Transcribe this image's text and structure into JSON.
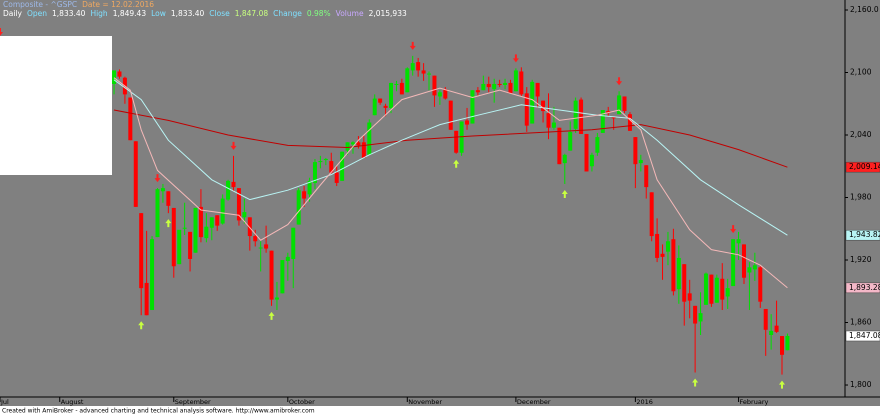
{
  "chart_data": {
    "type": "candlestick",
    "header": {
      "line1": [
        {
          "text": "Composite - ^GSPC",
          "color": "#9db8e8"
        },
        {
          "text": "Date = 12.02.2016",
          "color": "#f0a860"
        }
      ],
      "line2": [
        {
          "text": "Daily",
          "color": "#ffffff"
        },
        {
          "text": "Open",
          "color": "#7fe0ff"
        },
        {
          "text": "1,833.40",
          "color": "#ffffff"
        },
        {
          "text": "High",
          "color": "#7fe0ff"
        },
        {
          "text": "1,849.43",
          "color": "#ffffff"
        },
        {
          "text": "Low",
          "color": "#7fe0ff"
        },
        {
          "text": "1,833.40",
          "color": "#ffffff"
        },
        {
          "text": "Close",
          "color": "#7fe0ff"
        },
        {
          "text": "1,847.08",
          "color": "#c8ff80"
        },
        {
          "text": "Change",
          "color": "#7fe0ff"
        },
        {
          "text": "0.98%",
          "color": "#80ff80"
        },
        {
          "text": "Volume",
          "color": "#c8a8ff"
        },
        {
          "text": "2,015,933",
          "color": "#ffffff"
        }
      ]
    },
    "x": [
      10,
      11,
      12,
      13,
      14,
      15,
      16,
      17,
      18,
      19,
      20,
      21,
      22,
      23,
      24,
      25,
      26,
      27,
      28,
      29,
      30,
      31,
      32,
      33,
      34,
      35,
      36,
      37,
      38,
      39,
      40,
      41,
      42,
      43,
      44,
      45,
      46,
      47,
      48,
      49,
      50,
      51,
      52,
      53,
      54,
      55,
      56,
      57,
      58,
      59,
      60,
      61,
      62,
      63,
      64,
      65,
      66,
      67,
      68,
      69,
      70,
      71,
      72,
      73,
      74,
      75,
      76,
      77,
      78,
      79,
      80,
      81,
      82,
      83,
      84,
      85,
      86,
      87,
      88,
      89,
      90,
      91,
      92,
      93,
      94,
      95,
      96,
      97,
      98,
      99,
      100,
      101,
      102,
      103,
      104,
      105,
      106,
      107,
      108,
      109,
      110,
      111,
      112,
      113,
      114,
      115,
      116,
      117,
      118,
      119,
      120,
      121,
      122,
      123,
      124,
      125,
      126,
      127,
      128,
      129,
      130,
      131,
      132,
      133,
      134
    ],
    "open": [
      2089,
      2101,
      2095,
      2076,
      2034,
      1965,
      1898,
      1872,
      1942,
      1986,
      1986,
      1970,
      1916,
      1950,
      1947,
      1927,
      1971,
      1941,
      1951,
      1963,
      1955,
      1978,
      1995,
      1989,
      1961,
      1961,
      1943,
      1932,
      1935,
      1929,
      1882,
      1888,
      1919,
      1921,
      1954,
      1986,
      1983,
      1994,
      2014,
      2016,
      2015,
      2004,
      1996,
      2025,
      2031,
      2033,
      2033,
      2021,
      2059,
      2075,
      2068,
      2066,
      2088,
      2090,
      2081,
      2102,
      2110,
      2102,
      2098,
      2097,
      2077,
      2084,
      2073,
      2044,
      2023,
      2054,
      2051,
      2083,
      2083,
      2089,
      2084,
      2089,
      2088,
      2090,
      2082,
      2101,
      2080,
      2051,
      2090,
      2073,
      2061,
      2047,
      2047,
      2013,
      2025,
      2046,
      2074,
      2041,
      2010,
      2023,
      2042,
      2063,
      2057,
      2060,
      2077,
      2060,
      2038,
      2013,
      2011,
      1985,
      1945,
      1926,
      1928,
      1940,
      1892,
      1916,
      1888,
      1876,
      1861,
      1877,
      1906,
      1879,
      1902,
      1885,
      1895,
      1936,
      1935,
      1908,
      1911,
      1913,
      1873,
      1848,
      1857,
      1847,
      1833.4
    ],
    "high": [
      2102,
      2103,
      2096,
      2076,
      2034,
      1965,
      1948,
      1943,
      1989,
      1993,
      1986,
      1970,
      1948,
      1975,
      1947,
      1970,
      1988,
      1965,
      1961,
      1963,
      1983,
      1997,
      2020,
      1989,
      1979,
      1961,
      1949,
      1938,
      1953,
      1929,
      1899,
      1920,
      1927,
      1951,
      1989,
      1991,
      1999,
      2017,
      2020,
      2018,
      2023,
      2010,
      2024,
      2033,
      2034,
      2039,
      2039,
      2055,
      2079,
      2075,
      2070,
      2090,
      2092,
      2094,
      2105,
      2116,
      2114,
      2109,
      2101,
      2097,
      2083,
      2086,
      2073,
      2044,
      2053,
      2066,
      2083,
      2086,
      2097,
      2096,
      2094,
      2093,
      2094,
      2093,
      2104,
      2105,
      2086,
      2093,
      2090,
      2073,
      2080,
      2067,
      2047,
      2022,
      2053,
      2076,
      2076,
      2041,
      2023,
      2042,
      2064,
      2067,
      2057,
      2082,
      2077,
      2062,
      2038,
      2021,
      2011,
      1985,
      1960,
      1935,
      1947,
      1950,
      1934,
      1916,
      1901,
      1876,
      1889,
      1908,
      1906,
      1906,
      1917,
      1902,
      1940,
      1947,
      1935,
      1918,
      1927,
      1914,
      1873,
      1868,
      1881,
      1847,
      1849.43
    ],
    "low": [
      2079,
      2094,
      2070,
      2035,
      1971,
      1867,
      1867,
      1872,
      1942,
      1975,
      1965,
      1903,
      1916,
      1944,
      1909,
      1927,
      1937,
      1937,
      1939,
      1948,
      1954,
      1977,
      1986,
      1953,
      1955,
      1929,
      1933,
      1909,
      1927,
      1876,
      1872,
      1888,
      1900,
      1893,
      1954,
      1971,
      1976,
      1988,
      2008,
      2011,
      2003,
      1991,
      1996,
      2021,
      2022,
      2027,
      2018,
      2021,
      2059,
      2069,
      2058,
      2061,
      2082,
      2079,
      2081,
      2097,
      2096,
      2092,
      2083,
      2067,
      2069,
      2074,
      2045,
      2022,
      2020,
      2045,
      2051,
      2078,
      2083,
      2081,
      2071,
      2086,
      2084,
      2080,
      2082,
      2077,
      2043,
      2051,
      2066,
      2052,
      2036,
      2045,
      2012,
      1993,
      2025,
      2042,
      2041,
      2005,
      2005,
      2020,
      2042,
      2058,
      2045,
      2060,
      2061,
      2044,
      1989,
      2005,
      1979,
      1938,
      1918,
      1901,
      1915,
      1886,
      1878,
      1857,
      1864,
      1812,
      1848,
      1877,
      1875,
      1879,
      1872,
      1873,
      1895,
      1920,
      1897,
      1872,
      1900,
      1874,
      1828,
      1834,
      1850,
      1810,
      1833.4
    ],
    "close": [
      2102,
      2096,
      2079,
      2035,
      1971,
      1893,
      1867,
      1940,
      1988,
      1989,
      1972,
      1914,
      1949,
      1951,
      1921,
      1970,
      1942,
      1952,
      1961,
      1953,
      1979,
      1996,
      1990,
      1958,
      1966,
      1943,
      1938,
      1932,
      1931,
      1882,
      1884,
      1920,
      1923,
      1951,
      1987,
      1979,
      1996,
      2014,
      2015,
      2017,
      2004,
      1994,
      2024,
      2033,
      2033,
      2030,
      2018,
      2052,
      2075,
      2071,
      2066,
      2090,
      2089,
      2079,
      2104,
      2109,
      2102,
      2099,
      2099,
      2078,
      2081,
      2075,
      2045,
      2023,
      2053,
      2050,
      2083,
      2081,
      2089,
      2086,
      2089,
      2088,
      2090,
      2080,
      2102,
      2079,
      2049,
      2091,
      2077,
      2063,
      2047,
      2052,
      2012,
      2021,
      2043,
      2073,
      2041,
      2005,
      2021,
      2038,
      2064,
      2061,
      2056,
      2078,
      2063,
      2044,
      2012,
      2016,
      1990,
      1943,
      1922,
      1923,
      1938,
      1890,
      1922,
      1880,
      1881,
      1859,
      1869,
      1907,
      1878,
      1903,
      1882,
      1893,
      1940,
      1940,
      1903,
      1913,
      1915,
      1880,
      1853,
      1852,
      1851,
      1829,
      1847.08
    ],
    "up_color": "#00e000",
    "down_color": "#ff0000",
    "overlays": [
      {
        "color": "#c00000",
        "x": [
          10,
          20,
          31,
          42,
          53,
          64,
          76,
          87,
          98,
          107,
          116,
          125,
          134
        ],
        "values": [
          2064,
          2054,
          2040,
          2030,
          2028,
          2035,
          2039,
          2042,
          2045,
          2050,
          2040,
          2026,
          2009.14
        ]
      },
      {
        "color": "#b8f4f4",
        "x": [
          10,
          15,
          20,
          28,
          35,
          42,
          50,
          57,
          63,
          70,
          77,
          85,
          92,
          99,
          105,
          110,
          118,
          125,
          134
        ],
        "values": [
          2093,
          2074,
          2035,
          1997,
          1978,
          1987,
          2002,
          2021,
          2035,
          2050,
          2059,
          2069,
          2064,
          2059,
          2056,
          2035,
          1997,
          1973,
          1943.82
        ]
      },
      {
        "color": "#f4b8b8",
        "x": [
          10,
          13,
          15,
          18,
          26,
          33,
          37,
          42,
          48,
          55,
          63,
          70,
          76,
          81,
          87,
          92,
          99,
          103,
          107,
          110,
          116,
          120,
          125,
          129,
          134
        ],
        "values": [
          2095,
          2083,
          2045,
          2006,
          1968,
          1963,
          1939,
          1954,
          1992,
          2035,
          2074,
          2085,
          2076,
          2083,
          2074,
          2054,
          2059,
          2064,
          2045,
          1997,
          1949,
          1930,
          1925,
          1915,
          1893.28
        ]
      }
    ],
    "buy_signals": [
      15,
      20,
      39,
      73,
      93,
      117,
      133
    ],
    "buy_color": "#c8ff40",
    "sell_signals": [
      -11,
      18,
      32,
      65,
      84,
      103,
      124
    ],
    "sell_color": "#ff2020",
    "markers": [
      {
        "value": 2009.14,
        "label": "2,009.14",
        "color": "#ff2020"
      },
      {
        "value": 1943.82,
        "label": "1,943.82",
        "color": "#b8f4f4"
      },
      {
        "value": 1893.28,
        "label": "1,893.28",
        "color": "#f4b8c8"
      },
      {
        "value": 1847.08,
        "label": "1,847.08",
        "color": "#ffffff"
      }
    ],
    "xlim": [
      -11,
      144.6
    ],
    "xticks": [
      {
        "value": -11,
        "label": "Jul"
      },
      {
        "value": 0,
        "label": "August"
      },
      {
        "value": 21,
        "label": "September"
      },
      {
        "value": 42,
        "label": "October"
      },
      {
        "value": 64,
        "label": "November"
      },
      {
        "value": 84,
        "label": "December"
      },
      {
        "value": 106,
        "label": "2016"
      },
      {
        "value": 125,
        "label": "February"
      }
    ],
    "ylim": [
      1788.5,
      2169.6
    ],
    "yticks": [
      {
        "value": 2160,
        "label": "2,160.0"
      },
      {
        "value": 2100,
        "label": "2,100"
      },
      {
        "value": 2040,
        "label": "2,040"
      },
      {
        "value": 1980,
        "label": "1,980"
      },
      {
        "value": 1920,
        "label": "1,920"
      },
      {
        "value": 1860,
        "label": "1,860"
      },
      {
        "value": 1800,
        "label": "1,800"
      }
    ],
    "footer": "Created with AmiBroker - advanced charting and technical analysis software. http://www.amibroker.com"
  }
}
